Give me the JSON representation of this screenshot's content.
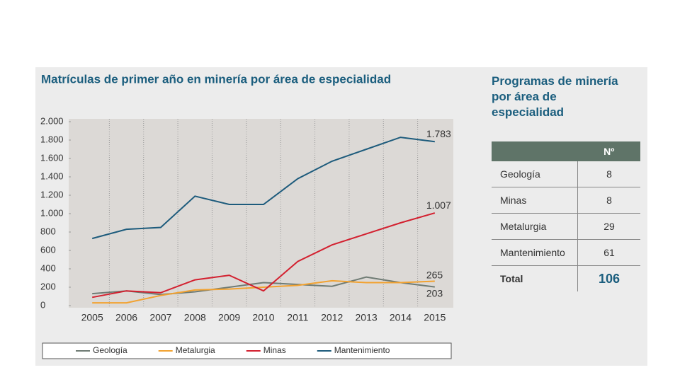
{
  "chart_data": {
    "type": "line",
    "title": "Matrículas de primer año en minería por área de especialidad",
    "categories": [
      "2005",
      "2006",
      "2007",
      "2008",
      "2009",
      "2010",
      "2011",
      "2012",
      "2013",
      "2014",
      "2015"
    ],
    "series": [
      {
        "name": "Geología",
        "color": "#6f7b74",
        "values": [
          130,
          160,
          120,
          150,
          200,
          250,
          230,
          210,
          310,
          250,
          203
        ]
      },
      {
        "name": "Metalurgia",
        "color": "#f2a230",
        "values": [
          30,
          30,
          110,
          170,
          180,
          200,
          220,
          270,
          250,
          250,
          265
        ]
      },
      {
        "name": "Minas",
        "color": "#d3202f",
        "values": [
          90,
          160,
          140,
          280,
          330,
          160,
          480,
          660,
          780,
          900,
          1007
        ],
        "value_labels": [
          null,
          null,
          null,
          null,
          null,
          null,
          null,
          null,
          null,
          null,
          "1.007"
        ]
      },
      {
        "name": "Mantenimiento",
        "color": "#1d5b7c",
        "values": [
          730,
          830,
          850,
          1190,
          1100,
          1100,
          1380,
          1570,
          1700,
          1830,
          1783
        ],
        "value_labels": [
          null,
          null,
          null,
          null,
          null,
          null,
          null,
          null,
          null,
          null,
          "1.783"
        ]
      }
    ],
    "label_last": true,
    "ylim": [
      0,
      2000
    ],
    "yticks": [
      0,
      200,
      400,
      600,
      800,
      {
        "value": 1000,
        "label": "1.000"
      },
      {
        "value": 1200,
        "label": "1.200"
      },
      {
        "value": 1400,
        "label": "1.400"
      },
      {
        "value": 1600,
        "label": "1.600"
      },
      {
        "value": 1800,
        "label": "1.800"
      },
      {
        "value": 2000,
        "label": "2.000"
      }
    ],
    "legend": "bottom"
  },
  "table": {
    "title": "Programas de minería por área de especialidad",
    "header": "Nº",
    "rows": [
      [
        "Geología",
        8
      ],
      [
        "Minas",
        8
      ],
      [
        "Metalurgia",
        29
      ],
      [
        "Mantenimiento",
        61
      ]
    ],
    "total": [
      "Total",
      106
    ]
  }
}
